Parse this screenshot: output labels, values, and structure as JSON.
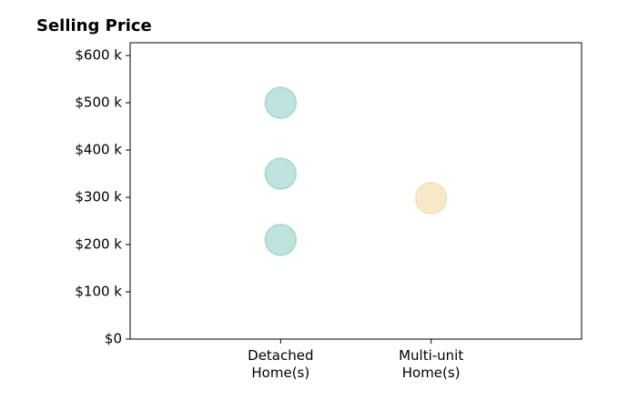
{
  "chart_data": {
    "type": "scatter",
    "title": "Selling Price",
    "series": [
      {
        "color": "#80c8bf",
        "x": [
          1,
          1,
          1
        ],
        "values": [
          500000,
          350000,
          210000
        ]
      },
      {
        "color": "#efd391",
        "x": [
          2
        ],
        "values": [
          298000
        ]
      }
    ],
    "xlim": [
      0,
      3
    ],
    "xticks": [
      {
        "value": 1,
        "label": "Detached\nHome(s)"
      },
      {
        "value": 2,
        "label": "Multi-unit\nHome(s)"
      }
    ],
    "ylim": [
      0,
      627000
    ],
    "yticks": [
      {
        "value": 0,
        "label": "$0"
      },
      {
        "value": 100000,
        "label": "$100 k"
      },
      {
        "value": 200000,
        "label": "$200 k"
      },
      {
        "value": 300000,
        "label": "$300 k"
      },
      {
        "value": 400000,
        "label": "$400 k"
      },
      {
        "value": 500000,
        "label": "$500 k"
      },
      {
        "value": 600000,
        "label": "$600 k"
      }
    ]
  }
}
